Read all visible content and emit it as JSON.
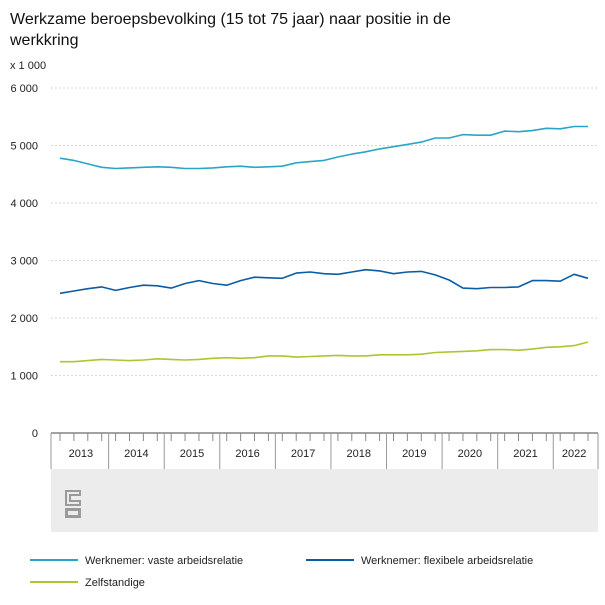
{
  "chart_data": {
    "type": "line",
    "title_lines": [
      "Werkzame beroepsbevolking (15 tot 75 jaar) naar positie in de",
      "werkkring"
    ],
    "unit_label": "x 1 000",
    "y_ticks": [
      "0",
      "1 000",
      "2 000",
      "3 000",
      "4 000",
      "5 000",
      "6 000"
    ],
    "ylim": [
      0,
      6000
    ],
    "grid": true,
    "year_labels": [
      "2013",
      "2014",
      "2015",
      "2016",
      "2017",
      "2018",
      "2019",
      "2020",
      "2021",
      "2022"
    ],
    "x_quarters": [
      "2013 Q1",
      "2013 Q2",
      "2013 Q3",
      "2013 Q4",
      "2014 Q1",
      "2014 Q2",
      "2014 Q3",
      "2014 Q4",
      "2015 Q1",
      "2015 Q2",
      "2015 Q3",
      "2015 Q4",
      "2016 Q1",
      "2016 Q2",
      "2016 Q3",
      "2016 Q4",
      "2017 Q1",
      "2017 Q2",
      "2017 Q3",
      "2017 Q4",
      "2018 Q1",
      "2018 Q2",
      "2018 Q3",
      "2018 Q4",
      "2019 Q1",
      "2019 Q2",
      "2019 Q3",
      "2019 Q4",
      "2020 Q1",
      "2020 Q2",
      "2020 Q3",
      "2020 Q4",
      "2021 Q1",
      "2021 Q2",
      "2021 Q3",
      "2021 Q4",
      "2022 Q1",
      "2022 Q2",
      "2022 Q3"
    ],
    "legend_position": "bottom",
    "series": [
      {
        "name": "Werknemer: vaste arbeidsrelatie",
        "color": "#29a6c7",
        "values": [
          4780,
          4740,
          4680,
          4620,
          4600,
          4610,
          4620,
          4630,
          4620,
          4600,
          4600,
          4610,
          4630,
          4640,
          4620,
          4630,
          4640,
          4700,
          4720,
          4740,
          4800,
          4850,
          4890,
          4940,
          4980,
          5020,
          5060,
          5130,
          5130,
          5190,
          5180,
          5180,
          5250,
          5240,
          5260,
          5300,
          5290,
          5330,
          5330
        ]
      },
      {
        "name": "Werknemer: flexibele arbeidsrelatie",
        "color": "#0a5da5",
        "values": [
          2430,
          2470,
          2510,
          2540,
          2480,
          2530,
          2570,
          2560,
          2520,
          2600,
          2650,
          2600,
          2570,
          2650,
          2710,
          2700,
          2690,
          2780,
          2800,
          2770,
          2760,
          2800,
          2840,
          2820,
          2770,
          2800,
          2810,
          2750,
          2660,
          2520,
          2510,
          2530,
          2530,
          2540,
          2650,
          2650,
          2640,
          2760,
          2690
        ]
      },
      {
        "name": "Zelfstandige",
        "color": "#a9c730",
        "values": [
          1240,
          1240,
          1260,
          1280,
          1270,
          1260,
          1270,
          1290,
          1280,
          1270,
          1280,
          1300,
          1310,
          1300,
          1310,
          1340,
          1340,
          1320,
          1330,
          1340,
          1350,
          1340,
          1340,
          1360,
          1360,
          1360,
          1370,
          1400,
          1410,
          1420,
          1430,
          1450,
          1450,
          1440,
          1460,
          1490,
          1500,
          1520,
          1580
        ]
      }
    ]
  },
  "footer": {
    "logo_name": "cbs-logo"
  }
}
